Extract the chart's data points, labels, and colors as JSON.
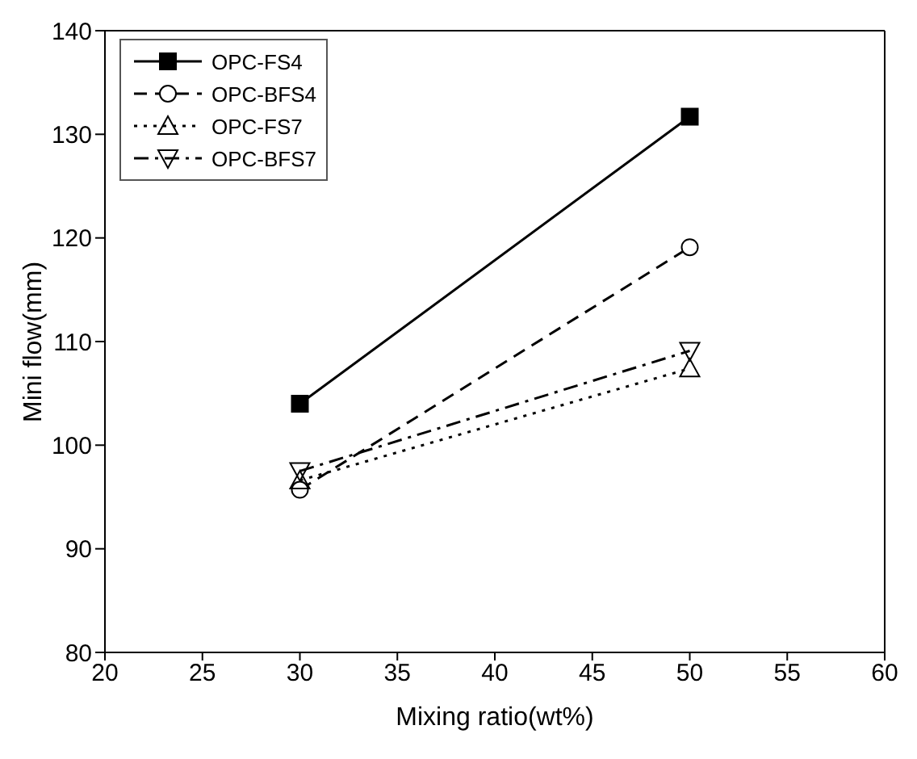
{
  "chart_data": {
    "type": "line",
    "xlabel": "Mixing ratio(wt%)",
    "ylabel": "Mini flow(mm)",
    "x": [
      30,
      50
    ],
    "series": [
      {
        "name": "OPC-FS4",
        "color": "#000000",
        "values": [
          104,
          131.7
        ],
        "marker": "square",
        "line_style": "solid"
      },
      {
        "name": "OPC-BFS4",
        "color": "#000000",
        "values": [
          95.7,
          119.1
        ],
        "marker": "circle",
        "line_style": "dashed"
      },
      {
        "name": "OPC-FS7",
        "color": "#000000",
        "values": [
          96.6,
          107.4
        ],
        "marker": "triangle",
        "line_style": "dotted"
      },
      {
        "name": "OPC-BFS7",
        "color": "#000000",
        "values": [
          97.5,
          109.1
        ],
        "marker": "triangle-down",
        "line_style": "dashdot"
      }
    ],
    "xlim": [
      20,
      60
    ],
    "xticks": [
      20,
      25,
      30,
      35,
      40,
      45,
      50,
      55,
      60
    ],
    "ylim": [
      80,
      140
    ],
    "yticks": [
      80,
      90,
      100,
      110,
      120,
      130,
      140
    ],
    "legend": "top left"
  }
}
